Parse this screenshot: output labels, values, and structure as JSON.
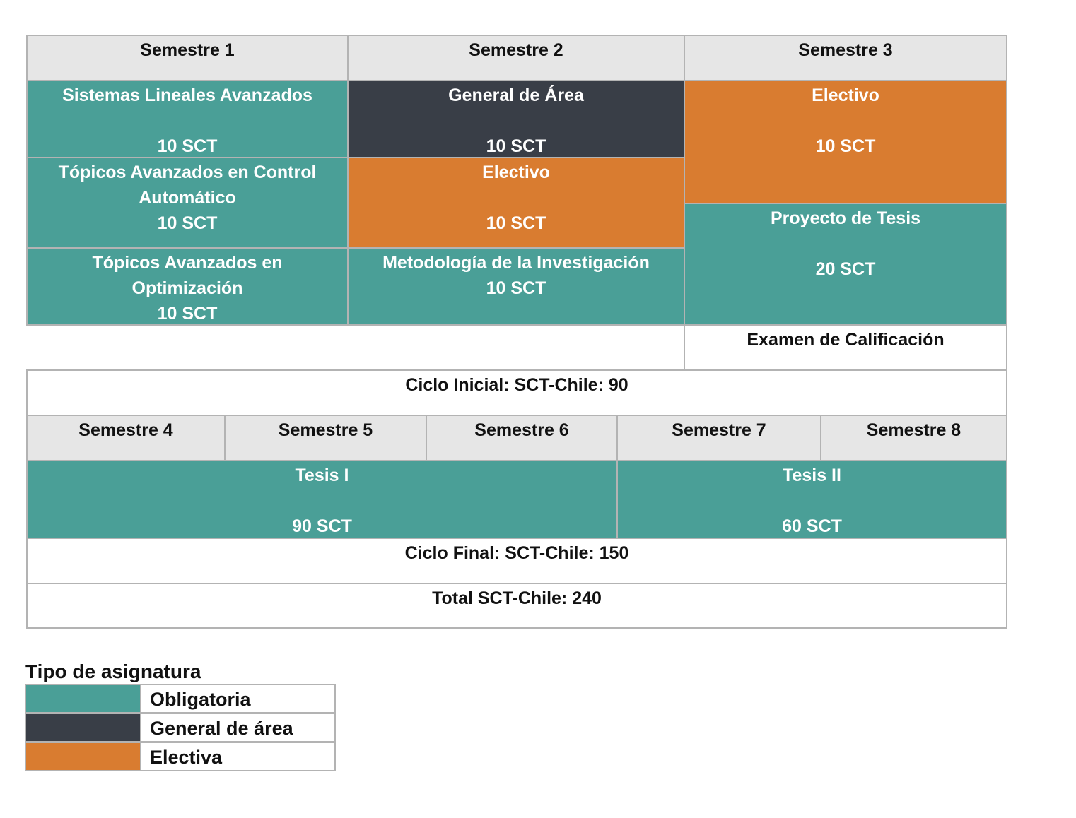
{
  "ciclo_inicial": {
    "headers": [
      "Semestre 1",
      "Semestre 2",
      "Semestre 3"
    ],
    "s1": [
      {
        "name": "Sistemas Lineales Avanzados",
        "sct": "10 SCT"
      },
      {
        "name_l1": "Tópicos Avanzados en Control",
        "name_l2": "Automático",
        "sct": "10 SCT"
      },
      {
        "name_l1": "Tópicos Avanzados en",
        "name_l2": "Optimización",
        "sct": "10 SCT"
      }
    ],
    "s2": [
      {
        "name": "General de Área",
        "sct": "10 SCT"
      },
      {
        "name": "Electivo",
        "sct": "10 SCT"
      },
      {
        "name": "Metodología de la Investigación",
        "sct": "10 SCT"
      }
    ],
    "s3": [
      {
        "name": "Electivo",
        "sct": "10 SCT"
      },
      {
        "name": "Proyecto de Tesis",
        "sct": "20 SCT"
      },
      {
        "name": "Examen de Calificación"
      }
    ],
    "summary": "Ciclo Inicial: SCT-Chile: 90"
  },
  "ciclo_final": {
    "headers": [
      "Semestre 4",
      "Semestre 5",
      "Semestre 6",
      "Semestre 7",
      "Semestre 8"
    ],
    "tesis1": {
      "name": "Tesis I",
      "sct": "90 SCT"
    },
    "tesis2": {
      "name": "Tesis II",
      "sct": "60 SCT"
    },
    "summary": "Ciclo Final: SCT-Chile: 150"
  },
  "total": "Total SCT-Chile: 240",
  "legend": {
    "title": "Tipo de asignatura",
    "items": [
      {
        "label": "Obligatoria",
        "color": "#4a9f97"
      },
      {
        "label": "General de área",
        "color": "#393e47"
      },
      {
        "label": "Electiva",
        "color": "#d97c30"
      }
    ]
  },
  "colors": {
    "obligatoria": "#4a9f97",
    "general": "#393e47",
    "electiva": "#d97c30",
    "header_bg": "#e6e6e6",
    "border": "#b3b3b3"
  }
}
